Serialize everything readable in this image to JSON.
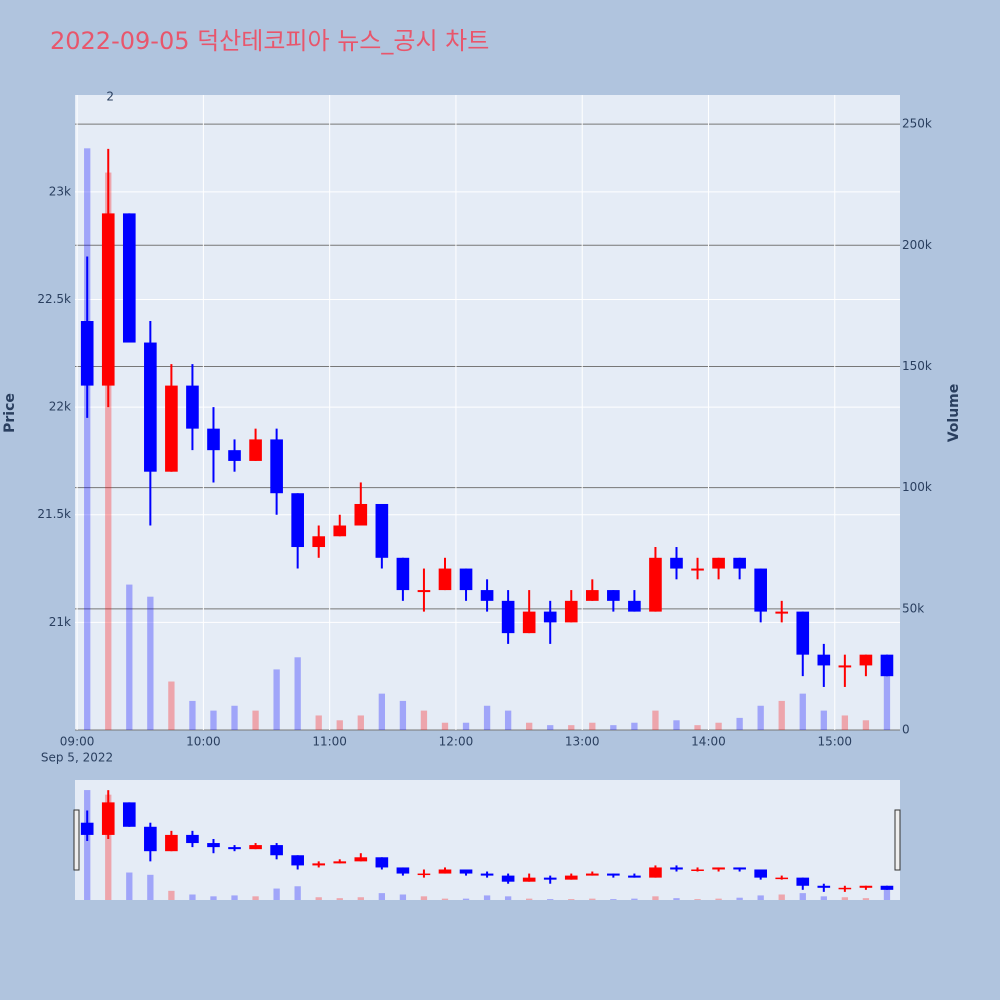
{
  "chart_data": {
    "type": "candlestick",
    "title": "2022-09-05 덕산테코피아 뉴스_공시 차트",
    "ylabel": "Price",
    "y2label": "Volume",
    "x": [
      "09:00",
      "09:10",
      "09:20",
      "09:30",
      "09:40",
      "09:50",
      "10:00",
      "10:10",
      "10:20",
      "10:30",
      "10:40",
      "10:50",
      "11:00",
      "11:10",
      "11:20",
      "11:30",
      "11:40",
      "11:50",
      "12:00",
      "12:10",
      "12:20",
      "12:30",
      "12:40",
      "12:50",
      "13:00",
      "13:10",
      "13:20",
      "13:30",
      "13:40",
      "13:50",
      "14:00",
      "14:10",
      "14:20",
      "14:30",
      "14:40",
      "14:50",
      "15:00",
      "15:10",
      "15:20"
    ],
    "open": [
      22400,
      22100,
      22900,
      22300,
      21700,
      22100,
      21900,
      21800,
      21750,
      21850,
      21600,
      21350,
      21400,
      21450,
      21550,
      21300,
      21150,
      21150,
      21250,
      21150,
      21100,
      20950,
      21050,
      21000,
      21100,
      21150,
      21100,
      21050,
      21300,
      21250,
      21250,
      21300,
      21250,
      21050,
      21050,
      20850,
      20800,
      20800,
      20850
    ],
    "high": [
      22700,
      23200,
      22900,
      22400,
      22200,
      22200,
      22000,
      21850,
      21900,
      21900,
      21600,
      21450,
      21500,
      21650,
      21550,
      21300,
      21250,
      21300,
      21250,
      21200,
      21150,
      21150,
      21100,
      21150,
      21200,
      21150,
      21150,
      21350,
      21350,
      21300,
      21300,
      21300,
      21250,
      21100,
      21050,
      20900,
      20850,
      20850,
      20850
    ],
    "low": [
      21950,
      22000,
      22300,
      21450,
      21700,
      21800,
      21650,
      21700,
      21750,
      21500,
      21250,
      21300,
      21400,
      21450,
      21250,
      21100,
      21050,
      21150,
      21100,
      21050,
      20900,
      20950,
      20900,
      21000,
      21100,
      21050,
      21050,
      21050,
      21200,
      21200,
      21200,
      21200,
      21000,
      21000,
      20750,
      20700,
      20700,
      20750,
      20750
    ],
    "close": [
      22100,
      22900,
      22300,
      21700,
      22100,
      21900,
      21800,
      21750,
      21850,
      21600,
      21350,
      21400,
      21450,
      21550,
      21300,
      21150,
      21150,
      21250,
      21150,
      21100,
      20950,
      21050,
      21000,
      21100,
      21150,
      21100,
      21050,
      21300,
      21250,
      21250,
      21300,
      21250,
      21050,
      21050,
      20850,
      20800,
      20800,
      20850,
      20750
    ],
    "volume": [
      240000,
      230000,
      60000,
      55000,
      20000,
      12000,
      8000,
      10000,
      8000,
      25000,
      30000,
      6000,
      4000,
      6000,
      15000,
      12000,
      8000,
      3000,
      3000,
      10000,
      8000,
      3000,
      2000,
      2000,
      3000,
      2000,
      3000,
      8000,
      4000,
      2000,
      3000,
      5000,
      10000,
      12000,
      15000,
      8000,
      6000,
      4000,
      30000
    ],
    "increasing_color": "#ff0000",
    "decreasing_color": "#0000ff",
    "xlim": [
      "08:59",
      "15:31"
    ],
    "xticks": [
      "09:00",
      "10:00",
      "11:00",
      "12:00",
      "13:00",
      "14:00",
      "15:00"
    ],
    "x_date_label": "Sep 5, 2022",
    "ylim": [
      20500,
      23450
    ],
    "yticks": [
      {
        "value": 21000,
        "label": "21k"
      },
      {
        "value": 21500,
        "label": "21.5k"
      },
      {
        "value": 22000,
        "label": "22k"
      },
      {
        "value": 22500,
        "label": "22.5k"
      },
      {
        "value": 23000,
        "label": "23k"
      }
    ],
    "y2lim": [
      0,
      262000
    ],
    "y2ticks": [
      0,
      {
        "value": 50000,
        "label": "50k"
      },
      {
        "value": 100000,
        "label": "100k"
      },
      {
        "value": 150000,
        "label": "150k"
      },
      {
        "value": 200000,
        "label": "200k"
      },
      {
        "value": 250000,
        "label": "250k"
      }
    ],
    "annotation": {
      "x": "09:10",
      "text": "2"
    },
    "grid": true,
    "rangeslider": true
  }
}
